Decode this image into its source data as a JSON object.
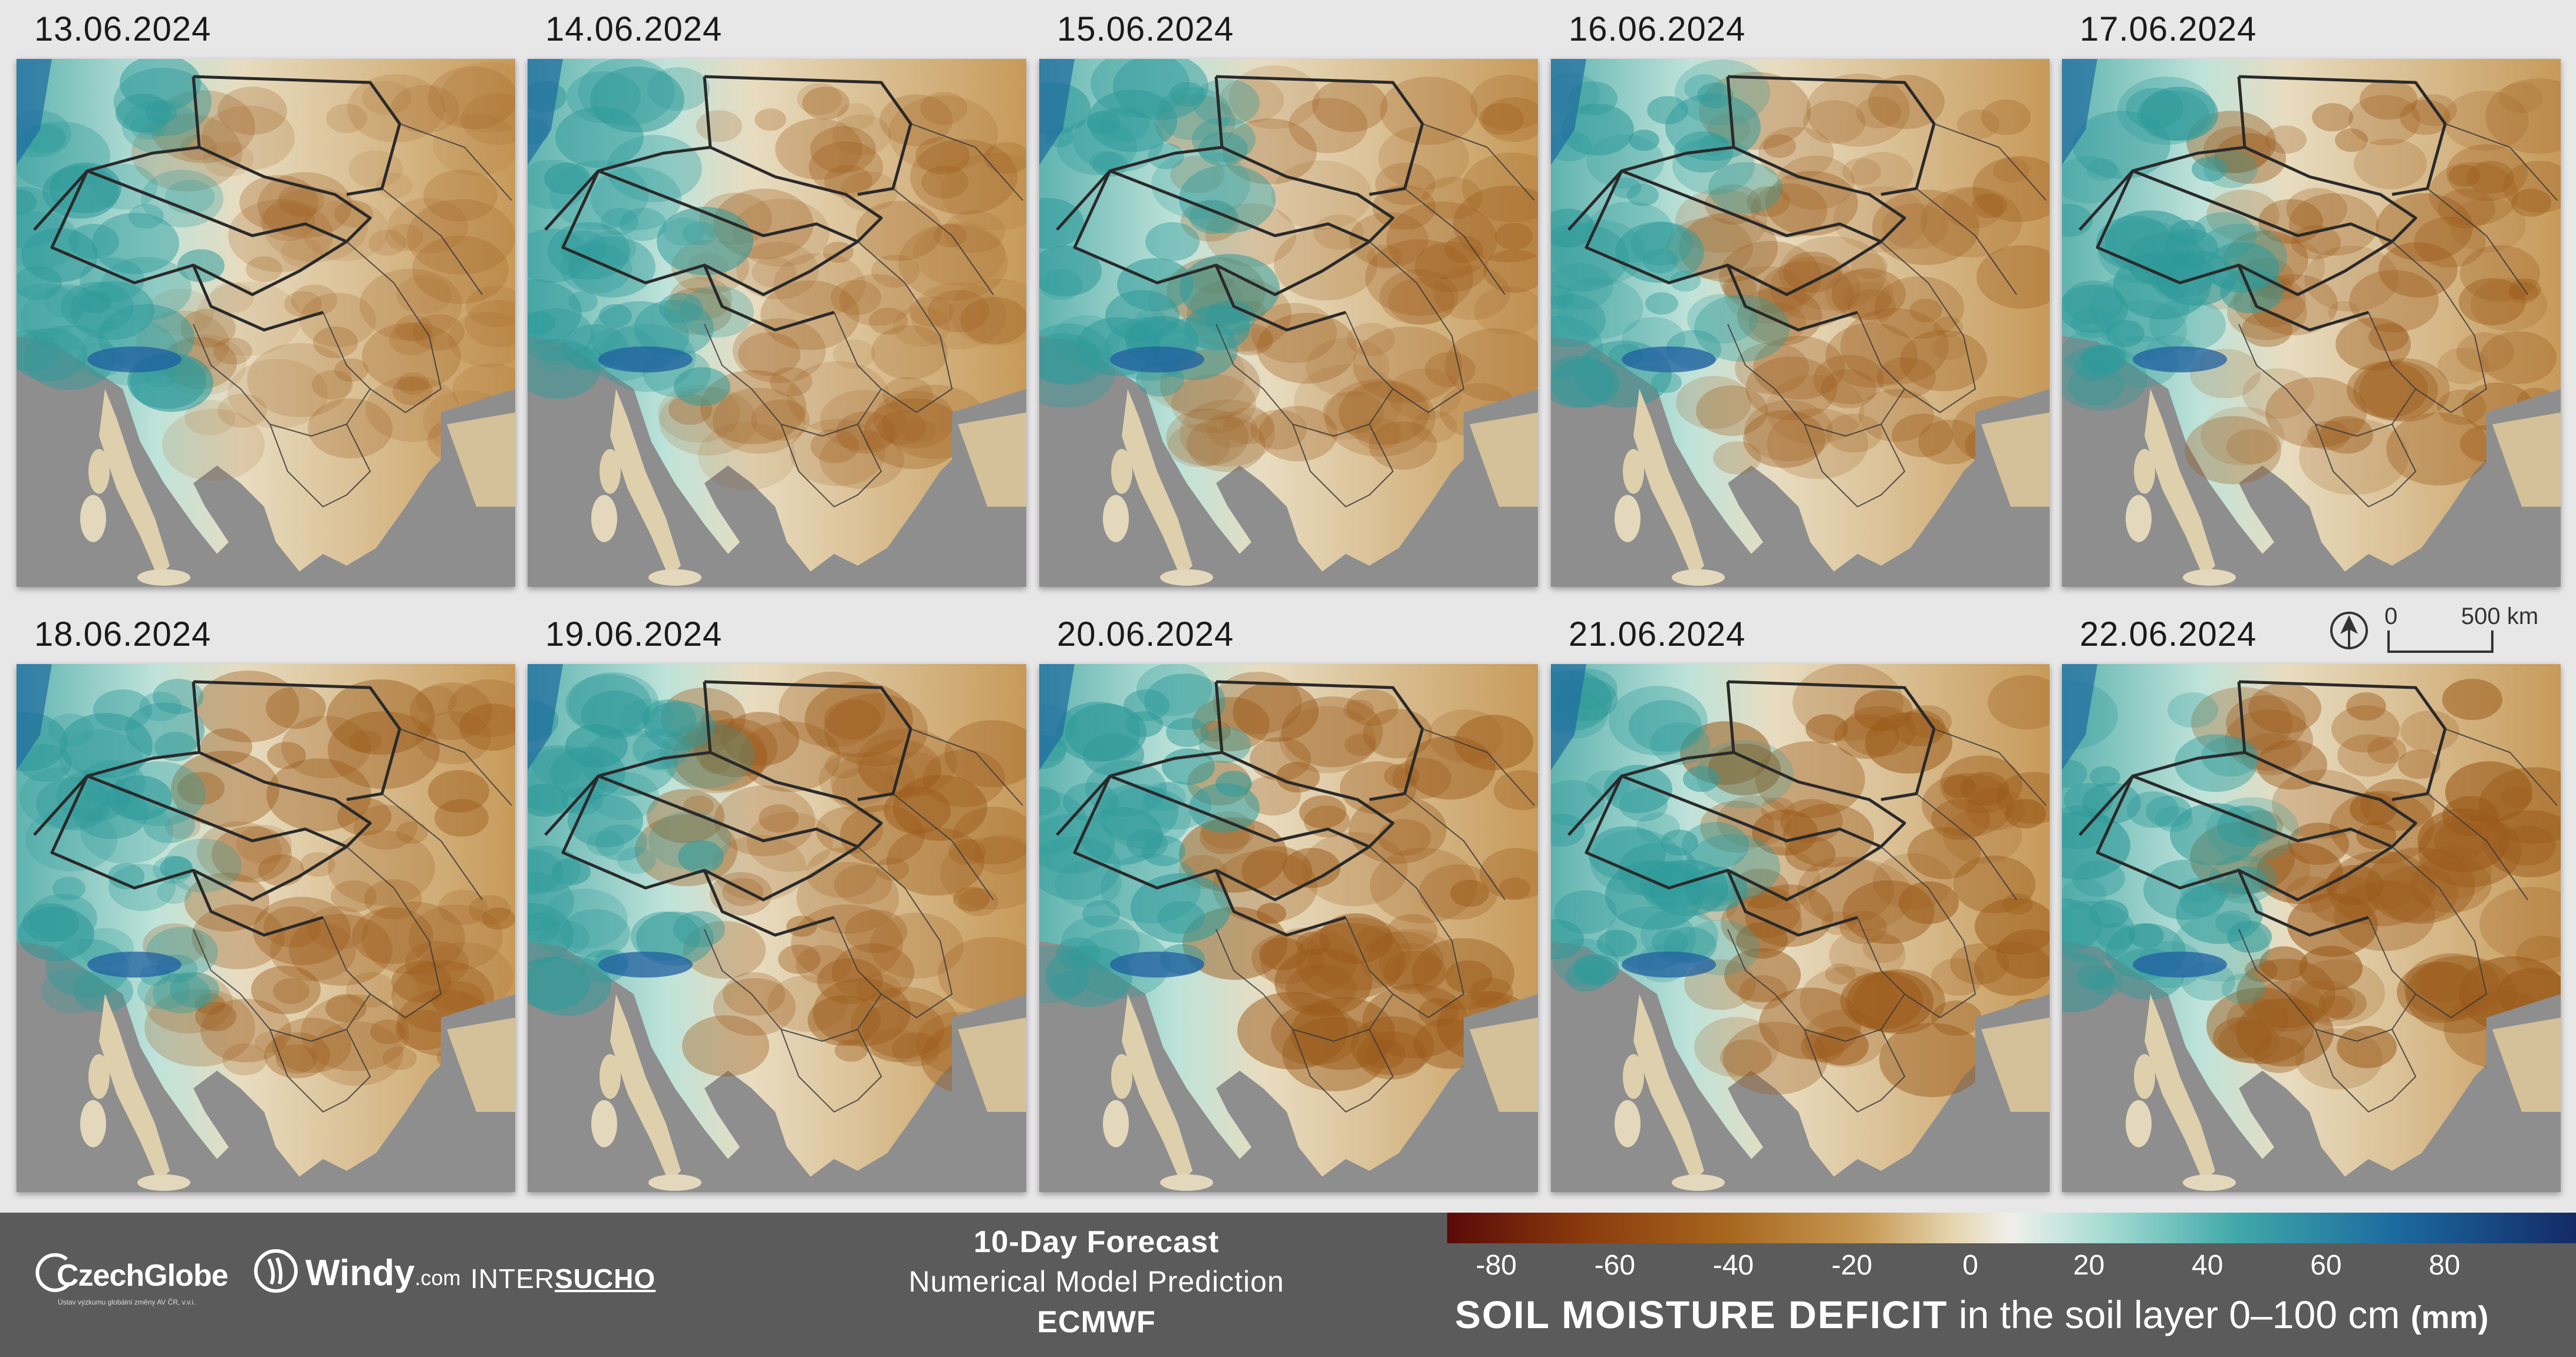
{
  "panels": [
    {
      "date": "13.06.2024"
    },
    {
      "date": "14.06.2024"
    },
    {
      "date": "15.06.2024"
    },
    {
      "date": "16.06.2024"
    },
    {
      "date": "17.06.2024"
    },
    {
      "date": "18.06.2024"
    },
    {
      "date": "19.06.2024"
    },
    {
      "date": "20.06.2024"
    },
    {
      "date": "21.06.2024"
    },
    {
      "date": "22.06.2024"
    }
  ],
  "scale": {
    "start": "0",
    "end": "500 km"
  },
  "footer": {
    "logos": {
      "czechglobe": "CzechGlobe",
      "czechglobe_sub": "Ústav výzkumu globální změny AV ČR, v.v.i.",
      "windy": "Windy",
      "windy_suffix": ".com",
      "intersucho_a": "INTER",
      "intersucho_b": "SUCHO"
    },
    "forecast_title": "10-Day Forecast",
    "forecast_subtitle": "Numerical Model Prediction",
    "forecast_model": "ECMWF"
  },
  "legend": {
    "ticks": [
      "-80",
      "-60",
      "-40",
      "-20",
      "0",
      "20",
      "40",
      "60",
      "80"
    ],
    "title_main": "SOIL MOISTURE DEFICIT",
    "title_rest": " in the soil layer 0–100 cm ",
    "title_unit": "(mm)",
    "colors": [
      "#5a0a08",
      "#8a3a0c",
      "#a8671f",
      "#c79a55",
      "#e6d6b2",
      "#efefec",
      "#a9ddd3",
      "#3fa8a8",
      "#1c6aa0",
      "#142a66"
    ]
  },
  "colors": {
    "background": "#e8e7e8",
    "sea": "#8e8e8e",
    "footer": "#5b5b5b"
  }
}
